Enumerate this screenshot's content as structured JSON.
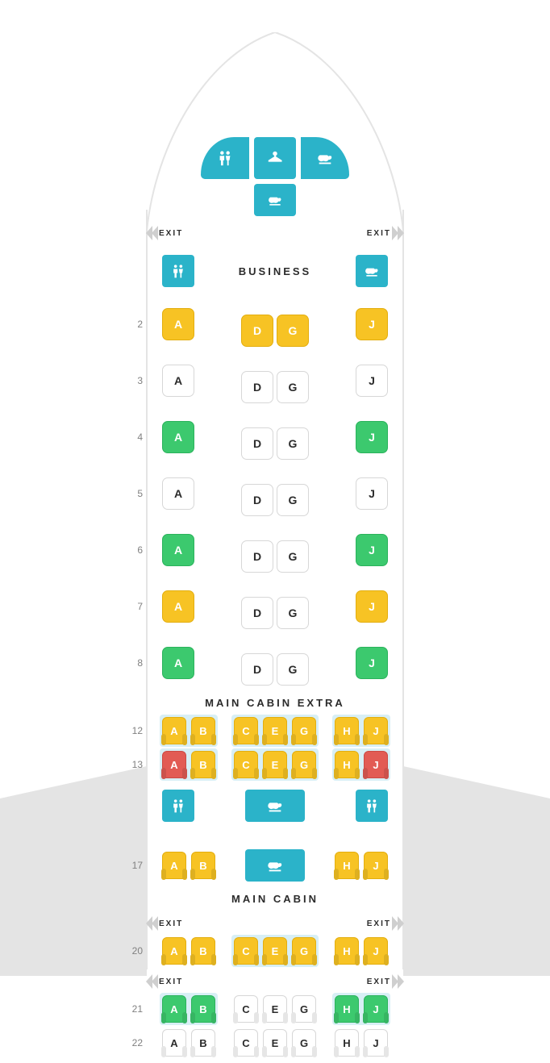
{
  "colors": {
    "panel_bg": "#2bb3c9",
    "seat_yellow": "#f7c324",
    "seat_green": "#3cc96e",
    "seat_red": "#e25b54",
    "seat_white_border": "#d7d7d7",
    "highlight_bg": "#d8eff5",
    "fuselage_border": "#e4e4e4",
    "wing_bg": "#e4e4e4",
    "text_dark": "#2b2b2b",
    "text_muted": "#808080"
  },
  "labels": {
    "exit": "EXIT",
    "business": "BUSINESS",
    "main_cabin_extra": "MAIN CABIN EXTRA",
    "main_cabin": "MAIN CABIN"
  },
  "nose_panels": [
    {
      "icon": "lavatory",
      "shape": "lav-left"
    },
    {
      "icon": "closet",
      "shape": "closet"
    },
    {
      "icon": "galley",
      "shape": "galley-r"
    }
  ],
  "nose_small_panel": {
    "icon": "galley"
  },
  "business_header": {
    "left_panel_icon": "lavatory",
    "right_panel_icon": "galley"
  },
  "business_rows": [
    {
      "num": "2",
      "A": {
        "l": "A",
        "c": "yellow"
      },
      "D": {
        "l": "D",
        "c": "yellow",
        "off": true
      },
      "G": {
        "l": "G",
        "c": "yellow",
        "off": true
      },
      "J": {
        "l": "J",
        "c": "yellow"
      }
    },
    {
      "num": "3",
      "A": {
        "l": "A",
        "c": "white"
      },
      "D": {
        "l": "D",
        "c": "white",
        "off": true
      },
      "G": {
        "l": "G",
        "c": "white",
        "off": true
      },
      "J": {
        "l": "J",
        "c": "white"
      }
    },
    {
      "num": "4",
      "A": {
        "l": "A",
        "c": "green"
      },
      "D": {
        "l": "D",
        "c": "white",
        "off": true
      },
      "G": {
        "l": "G",
        "c": "white",
        "off": true
      },
      "J": {
        "l": "J",
        "c": "green"
      }
    },
    {
      "num": "5",
      "A": {
        "l": "A",
        "c": "white"
      },
      "D": {
        "l": "D",
        "c": "white",
        "off": true
      },
      "G": {
        "l": "G",
        "c": "white",
        "off": true
      },
      "J": {
        "l": "J",
        "c": "white"
      }
    },
    {
      "num": "6",
      "A": {
        "l": "A",
        "c": "green"
      },
      "D": {
        "l": "D",
        "c": "white",
        "off": true
      },
      "G": {
        "l": "G",
        "c": "white",
        "off": true
      },
      "J": {
        "l": "J",
        "c": "green"
      }
    },
    {
      "num": "7",
      "A": {
        "l": "A",
        "c": "yellow"
      },
      "D": {
        "l": "D",
        "c": "white",
        "off": true
      },
      "G": {
        "l": "G",
        "c": "white",
        "off": true
      },
      "J": {
        "l": "J",
        "c": "yellow"
      }
    },
    {
      "num": "8",
      "A": {
        "l": "A",
        "c": "green"
      },
      "D": {
        "l": "D",
        "c": "white",
        "off": true
      },
      "G": {
        "l": "G",
        "c": "white",
        "off": true
      },
      "J": {
        "l": "J",
        "c": "green"
      }
    }
  ],
  "mce_rows": [
    {
      "num": "12",
      "hl": true,
      "L": [
        {
          "l": "A",
          "c": "yellow"
        },
        {
          "l": "B",
          "c": "yellow"
        }
      ],
      "C": [
        {
          "l": "C",
          "c": "yellow"
        },
        {
          "l": "E",
          "c": "yellow"
        },
        {
          "l": "G",
          "c": "yellow"
        }
      ],
      "R": [
        {
          "l": "H",
          "c": "yellow"
        },
        {
          "l": "J",
          "c": "yellow"
        }
      ]
    },
    {
      "num": "13",
      "hl": true,
      "L": [
        {
          "l": "A",
          "c": "red"
        },
        {
          "l": "B",
          "c": "yellow"
        }
      ],
      "C": [
        {
          "l": "C",
          "c": "yellow"
        },
        {
          "l": "E",
          "c": "yellow"
        },
        {
          "l": "G",
          "c": "yellow"
        }
      ],
      "R": [
        {
          "l": "H",
          "c": "yellow"
        },
        {
          "l": "J",
          "c": "red"
        }
      ]
    }
  ],
  "mce_galley_row": {
    "left_icon": "lavatory",
    "center_icon": "galley",
    "right_icon": "lavatory"
  },
  "row17": {
    "num": "17",
    "hl": false,
    "L": [
      {
        "l": "A",
        "c": "yellow"
      },
      {
        "l": "B",
        "c": "yellow"
      }
    ],
    "C_panel": {
      "icon": "galley"
    },
    "R": [
      {
        "l": "H",
        "c": "yellow"
      },
      {
        "l": "J",
        "c": "yellow"
      }
    ]
  },
  "main_cabin_rows": [
    {
      "num": "20",
      "exit_above": true,
      "hl_center": true,
      "L": [
        {
          "l": "A",
          "c": "yellow"
        },
        {
          "l": "B",
          "c": "yellow"
        }
      ],
      "C": [
        {
          "l": "C",
          "c": "yellow"
        },
        {
          "l": "E",
          "c": "yellow"
        },
        {
          "l": "G",
          "c": "yellow"
        }
      ],
      "R": [
        {
          "l": "H",
          "c": "yellow"
        },
        {
          "l": "J",
          "c": "yellow"
        }
      ]
    },
    {
      "num": "21",
      "exit_above": true,
      "hl_sides": true,
      "L": [
        {
          "l": "A",
          "c": "green"
        },
        {
          "l": "B",
          "c": "green"
        }
      ],
      "C": [
        {
          "l": "C",
          "c": "white"
        },
        {
          "l": "E",
          "c": "white"
        },
        {
          "l": "G",
          "c": "white"
        }
      ],
      "R": [
        {
          "l": "H",
          "c": "green"
        },
        {
          "l": "J",
          "c": "green"
        }
      ]
    },
    {
      "num": "22",
      "L": [
        {
          "l": "A",
          "c": "white"
        },
        {
          "l": "B",
          "c": "white"
        }
      ],
      "C": [
        {
          "l": "C",
          "c": "white"
        },
        {
          "l": "E",
          "c": "white"
        },
        {
          "l": "G",
          "c": "white"
        }
      ],
      "R": [
        {
          "l": "H",
          "c": "white"
        },
        {
          "l": "J",
          "c": "white"
        }
      ]
    }
  ]
}
